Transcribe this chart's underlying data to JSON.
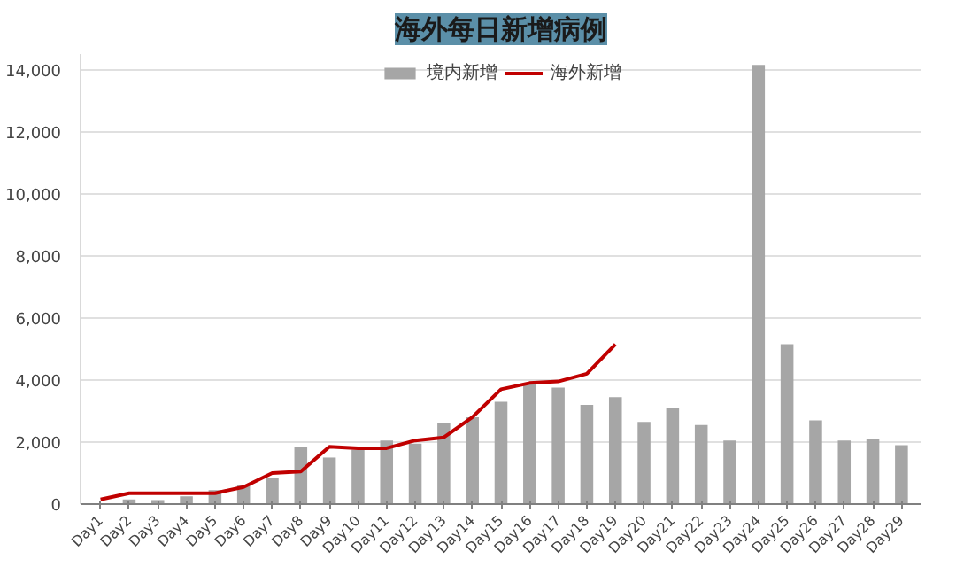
{
  "chart_data": {
    "type": "bar",
    "title": "海外每日新增病例",
    "categories": [
      "Day1",
      "Day2",
      "Day3",
      "Day4",
      "Day5",
      "Day6",
      "Day7",
      "Day8",
      "Day9",
      "Day10",
      "Day11",
      "Day12",
      "Day13",
      "Day14",
      "Day15",
      "Day16",
      "Day17",
      "Day18",
      "Day19",
      "Day20",
      "Day21",
      "Day22",
      "Day23",
      "Day24",
      "Day25",
      "Day26",
      "Day27",
      "Day28",
      "Day29"
    ],
    "series": [
      {
        "name": "境内新增",
        "color": "#a6a6a6",
        "values": [
          null,
          150,
          130,
          250,
          450,
          600,
          850,
          1850,
          1500,
          1750,
          2050,
          1950,
          2600,
          2800,
          3300,
          3850,
          3750,
          3200,
          3450,
          2650,
          3100,
          2550,
          2050,
          14150,
          5150,
          2700,
          2050,
          2100,
          1900
        ]
      },
      {
        "name": "海外新增",
        "type": "line",
        "color": "#c00000",
        "values": [
          150,
          350,
          350,
          350,
          350,
          550,
          1000,
          1050,
          1850,
          1800,
          1800,
          2050,
          2150,
          2800,
          3700,
          3900,
          3950,
          4200,
          5150,
          null,
          null,
          null,
          null,
          null,
          null,
          null,
          null,
          null,
          null
        ]
      }
    ],
    "ylim": [
      0,
      14500
    ],
    "yticks": [
      0,
      {
        "value": 2000,
        "label": "2,000"
      },
      {
        "value": 4000,
        "label": "4,000"
      },
      {
        "value": 6000,
        "label": "6,000"
      },
      {
        "value": 8000,
        "label": "8,000"
      },
      {
        "value": 10000,
        "label": "10,000"
      },
      {
        "value": 12000,
        "label": "12,000"
      },
      {
        "value": 14000,
        "label": "14,000"
      }
    ],
    "grid": "y",
    "legend": "top"
  }
}
